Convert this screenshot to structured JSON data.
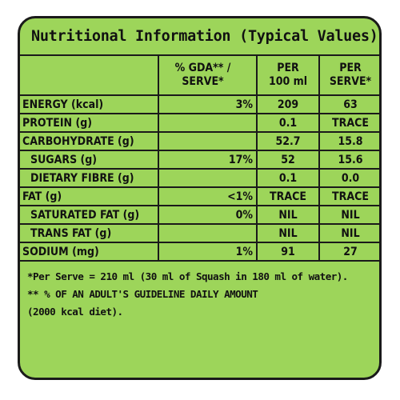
{
  "title": "Nutritional Information (Typical Values)",
  "headers": {
    "gda_line1": "% GDA** /",
    "gda_line2": "SERVE*",
    "per100_line1": "PER",
    "per100_line2": "100 ml",
    "perserve_line1": "PER",
    "perserve_line2": "SERVE*"
  },
  "rows": [
    {
      "name": "ENERGY (kcal)",
      "gda": "3%",
      "per100": "209",
      "perserve": "63"
    },
    {
      "name": "PROTEIN (g)",
      "gda": "",
      "per100": "0.1",
      "perserve": "TRACE"
    },
    {
      "name": "CARBOHYDRATE (g)",
      "gda": "",
      "per100": "52.7",
      "perserve": "15.8"
    },
    {
      "name": "SUGARS (g)",
      "gda": "17%",
      "per100": "52",
      "perserve": "15.6"
    },
    {
      "name": "DIETARY FIBRE (g)",
      "gda": "",
      "per100": "0.1",
      "perserve": "0.0"
    },
    {
      "name": "FAT (g)",
      "gda": "<1%",
      "per100": "TRACE",
      "perserve": "TRACE"
    },
    {
      "name": "SATURATED FAT (g)",
      "gda": "0%",
      "per100": "NIL",
      "perserve": "NIL"
    },
    {
      "name": "TRANS FAT (g)",
      "gda": "",
      "per100": "NIL",
      "perserve": "NIL"
    },
    {
      "name": "SODIUM (mg)",
      "gda": "1%",
      "per100": "91",
      "perserve": "27"
    }
  ],
  "footnotes": {
    "line1": "*Per Serve = 210 ml (30 ml of Squash in 180 ml of water).",
    "line2": "** % OF AN ADULT'S GUIDELINE DAILY AMOUNT",
    "line3": "(2000 kcal diet)."
  },
  "colors": {
    "background": "#9dd55a",
    "border": "#1a1a1a",
    "text": "#111111"
  }
}
